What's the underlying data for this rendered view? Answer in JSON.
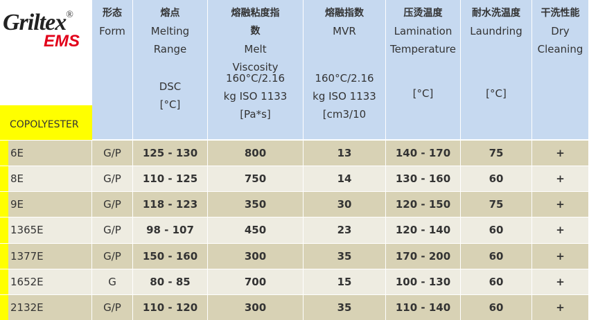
{
  "logo": {
    "brand": "Griltex",
    "reg": "®",
    "company": "EMS"
  },
  "label": "COPOLYESTER",
  "headers": [
    {
      "lines": [
        "形态",
        "Form"
      ]
    },
    {
      "lines": [
        "熔点",
        "Melting",
        "Range"
      ],
      "unit": [
        "DSC",
        "[°C]"
      ]
    },
    {
      "lines": [
        "熔融粘度指",
        "数",
        "Melt",
        "Viscosity"
      ],
      "unit": [
        "160°C/2.16",
        "kg ISO 1133",
        "[Pa*s]"
      ]
    },
    {
      "lines": [
        "熔融指数",
        "MVR"
      ],
      "unit": [
        "160°C/2.16",
        "kg ISO 1133",
        "[cm3/10"
      ]
    },
    {
      "lines": [
        "压烫温度",
        "Lamination",
        "Temperature"
      ],
      "unit": [
        "[°C]"
      ]
    },
    {
      "lines": [
        "耐水洗温度",
        "Laundring"
      ],
      "unit": [
        "[°C]"
      ]
    },
    {
      "lines": [
        "干洗性能",
        "Dry",
        "Cleaning"
      ]
    }
  ],
  "rows": [
    [
      "6E",
      "G/P",
      "125 - 130",
      800,
      13,
      "140 - 170",
      75,
      "+"
    ],
    [
      "8E",
      "G/P",
      "110 - 125",
      750,
      14,
      "130 - 160",
      60,
      "+"
    ],
    [
      "9E",
      "G/P",
      "118 - 123",
      350,
      30,
      "120 - 150",
      75,
      "+"
    ],
    [
      "1365E",
      "G/P",
      "98 - 107",
      450,
      23,
      "120 - 140",
      60,
      "+"
    ],
    [
      "1377E",
      "G/P",
      "150 - 160",
      300,
      35,
      "170 - 200",
      60,
      "+"
    ],
    [
      "1652E",
      "G",
      "80 - 85",
      700,
      15,
      "100 - 130",
      60,
      "+"
    ],
    [
      "2132E",
      "G/P",
      "110 - 120",
      300,
      35,
      "110 - 140",
      60,
      "+"
    ]
  ]
}
